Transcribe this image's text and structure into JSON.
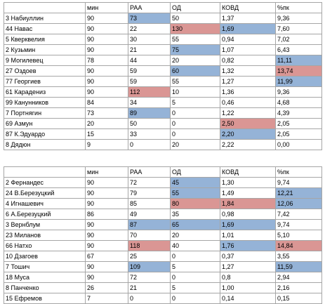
{
  "tables": [
    {
      "headers": [
        "",
        "мин",
        "РАА",
        "ОД",
        "КОВД",
        "%пк"
      ],
      "rows": [
        {
          "cells": [
            "3 Набиуллин",
            "90",
            "73",
            "50",
            "1,37",
            "9,36"
          ],
          "hl": [
            "",
            "",
            "b",
            "",
            "",
            ""
          ]
        },
        {
          "cells": [
            "44 Навас",
            "90",
            "22",
            "130",
            "1,69",
            "7,60"
          ],
          "hl": [
            "",
            "",
            "",
            "r",
            "b",
            ""
          ]
        },
        {
          "cells": [
            "5 Кверквелия",
            "90",
            "30",
            "55",
            "0,94",
            "7,02"
          ],
          "hl": [
            "",
            "",
            "",
            "",
            "",
            ""
          ]
        },
        {
          "cells": [
            "2 Кузьмин",
            "90",
            "21",
            "75",
            "1,07",
            "6,43"
          ],
          "hl": [
            "",
            "",
            "",
            "b",
            "",
            ""
          ]
        },
        {
          "cells": [
            "9 Могилевец",
            "78",
            "44",
            "20",
            "0,82",
            "11,11"
          ],
          "hl": [
            "",
            "",
            "",
            "",
            "",
            "b"
          ]
        },
        {
          "cells": [
            "27 Оздоев",
            "90",
            "59",
            "60",
            "1,32",
            "13,74"
          ],
          "hl": [
            "",
            "",
            "",
            "b",
            "",
            "r"
          ]
        },
        {
          "cells": [
            "77 Георгиев",
            "90",
            "59",
            "55",
            "1,27",
            "11,99"
          ],
          "hl": [
            "",
            "",
            "",
            "",
            "",
            "b"
          ]
        },
        {
          "cells": [
            "61 Карадениз",
            "90",
            "112",
            "10",
            "1,36",
            "9,36"
          ],
          "hl": [
            "",
            "",
            "r",
            "",
            "",
            ""
          ]
        },
        {
          "cells": [
            "99 Канунников",
            "84",
            "34",
            "5",
            "0,46",
            "4,68"
          ],
          "hl": [
            "",
            "",
            "",
            "",
            "",
            ""
          ]
        },
        {
          "cells": [
            "7 Портнягин",
            "73",
            "89",
            "0",
            "1,22",
            "4,39"
          ],
          "hl": [
            "",
            "",
            "b",
            "",
            "",
            ""
          ]
        },
        {
          "cells": [
            "69 Азмун",
            "20",
            "50",
            "0",
            "2,50",
            "2,05"
          ],
          "hl": [
            "",
            "",
            "",
            "",
            "r",
            ""
          ]
        },
        {
          "cells": [
            "87 К.Эдуардо",
            "15",
            "33",
            "0",
            "2,20",
            "2,05"
          ],
          "hl": [
            "",
            "",
            "",
            "",
            "b",
            ""
          ]
        },
        {
          "cells": [
            "8 Дядюн",
            "9",
            "0",
            "20",
            "2,22",
            "0,00"
          ],
          "hl": [
            "",
            "",
            "",
            "",
            "",
            ""
          ]
        }
      ]
    },
    {
      "headers": [
        "",
        "мин",
        "РАА",
        "ОД",
        "КОВД",
        "%пк"
      ],
      "rows": [
        {
          "cells": [
            "2 Фернандес",
            "90",
            "72",
            "45",
            "1,30",
            "9,74"
          ],
          "hl": [
            "",
            "",
            "",
            "b",
            "",
            ""
          ]
        },
        {
          "cells": [
            "24 В.Березуцкий",
            "90",
            "79",
            "55",
            "1,49",
            "12,21"
          ],
          "hl": [
            "",
            "",
            "",
            "b",
            "",
            "b"
          ]
        },
        {
          "cells": [
            "4 Игнашевич",
            "90",
            "85",
            "80",
            "1,84",
            "12,06"
          ],
          "hl": [
            "",
            "",
            "",
            "r",
            "r",
            "b"
          ]
        },
        {
          "cells": [
            "6 А.Березуцкий",
            "86",
            "49",
            "35",
            "0,98",
            "7,42"
          ],
          "hl": [
            "",
            "",
            "",
            "",
            "",
            ""
          ]
        },
        {
          "cells": [
            "3 Вернблум",
            "90",
            "87",
            "65",
            "1,69",
            "9,74"
          ],
          "hl": [
            "",
            "",
            "b",
            "b",
            "b",
            ""
          ]
        },
        {
          "cells": [
            "23 Миланов",
            "90",
            "70",
            "20",
            "1,01",
            "5,10"
          ],
          "hl": [
            "",
            "",
            "",
            "",
            "",
            ""
          ]
        },
        {
          "cells": [
            "66 Натхо",
            "90",
            "118",
            "40",
            "1,76",
            "14,84"
          ],
          "hl": [
            "",
            "",
            "r",
            "",
            "b",
            "r"
          ]
        },
        {
          "cells": [
            "10 Дзагоев",
            "67",
            "25",
            "0",
            "0,37",
            "3,55"
          ],
          "hl": [
            "",
            "",
            "",
            "",
            "",
            ""
          ]
        },
        {
          "cells": [
            "7 Тошич",
            "90",
            "109",
            "5",
            "1,27",
            "11,59"
          ],
          "hl": [
            "",
            "",
            "b",
            "",
            "",
            "b"
          ]
        },
        {
          "cells": [
            "18 Муса",
            "90",
            "72",
            "0",
            "0,8",
            "2,94"
          ],
          "hl": [
            "",
            "",
            "",
            "",
            "",
            ""
          ]
        },
        {
          "cells": [
            "8 Панченко",
            "26",
            "21",
            "5",
            "1,00",
            "2,16"
          ],
          "hl": [
            "",
            "",
            "",
            "",
            "",
            ""
          ]
        },
        {
          "cells": [
            "15 Ефремов",
            "7",
            "0",
            "0",
            "0,14",
            "0,15"
          ],
          "hl": [
            "",
            "",
            "",
            "",
            "",
            ""
          ]
        }
      ]
    }
  ],
  "colors": {
    "blue": "#95b3d7",
    "red": "#da9694",
    "border": "#a6a6a6"
  }
}
